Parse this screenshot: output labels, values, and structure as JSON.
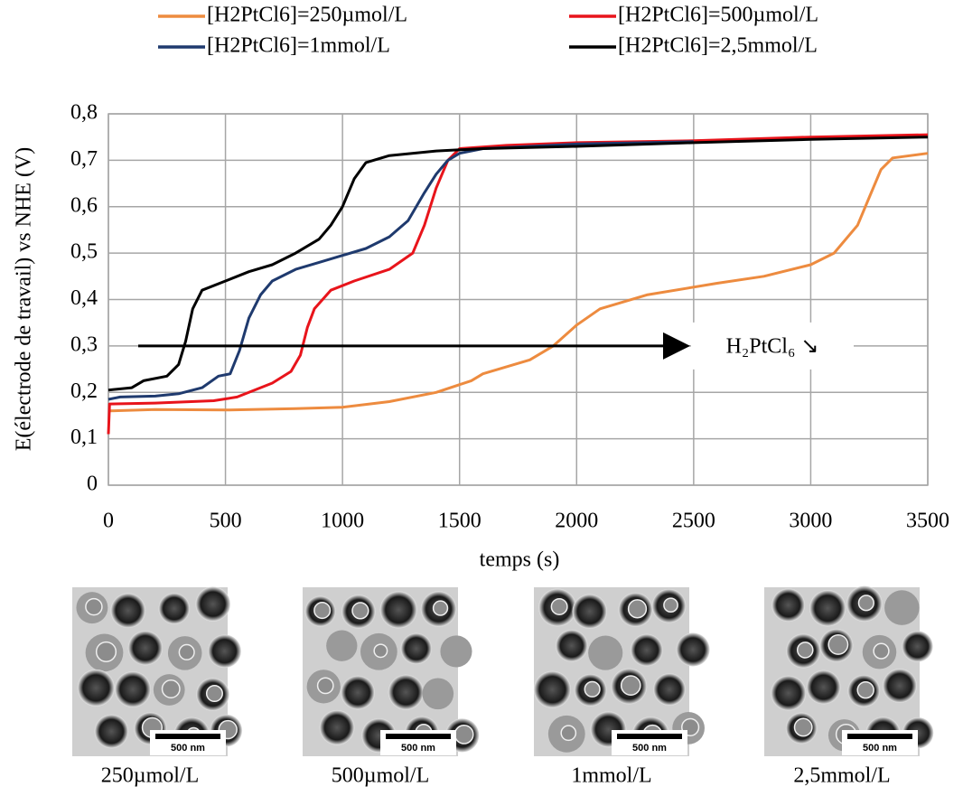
{
  "chart_data": {
    "type": "line",
    "xlabel": "temps (s)",
    "ylabel": "E(électrode de travail) vs NHE (V)",
    "xlim": [
      0,
      3500
    ],
    "xticks": [
      0,
      500,
      1000,
      1500,
      2000,
      2500,
      3000,
      3500
    ],
    "ylim": [
      0,
      0.8
    ],
    "yticks": [
      0,
      {
        "value": 0.1,
        "label": "0,1"
      },
      {
        "value": 0.2,
        "label": "0,2"
      },
      {
        "value": 0.3,
        "label": "0,3"
      },
      {
        "value": 0.4,
        "label": "0,4"
      },
      {
        "value": 0.5,
        "label": "0,5"
      },
      {
        "value": 0.6,
        "label": "0,6"
      },
      {
        "value": 0.7,
        "label": "0,7"
      },
      {
        "value": 0.8,
        "label": "0,8"
      }
    ],
    "grid": true,
    "annotation": "H₂PtCl₆ ↘",
    "series": [
      {
        "name": "[H2PtCl6]=250µmol/L",
        "color": "#ed8b3f",
        "x": [
          0,
          200,
          500,
          800,
          1000,
          1200,
          1400,
          1550,
          1600,
          1800,
          1900,
          2000,
          2100,
          2300,
          2600,
          2800,
          3000,
          3100,
          3200,
          3250,
          3300,
          3350,
          3500
        ],
        "values": [
          0.16,
          0.163,
          0.162,
          0.165,
          0.168,
          0.18,
          0.2,
          0.225,
          0.24,
          0.27,
          0.3,
          0.345,
          0.38,
          0.41,
          0.435,
          0.45,
          0.475,
          0.5,
          0.56,
          0.62,
          0.68,
          0.705,
          0.715
        ]
      },
      {
        "name": "[H2PtCl6]=500µmol/L",
        "color": "#e8141b",
        "x": [
          0,
          5,
          200,
          450,
          550,
          700,
          780,
          820,
          850,
          880,
          950,
          1050,
          1200,
          1300,
          1350,
          1400,
          1450,
          1500,
          1700,
          2000,
          2500,
          3000,
          3500
        ],
        "values": [
          0.11,
          0.175,
          0.177,
          0.182,
          0.19,
          0.22,
          0.245,
          0.28,
          0.34,
          0.38,
          0.42,
          0.44,
          0.465,
          0.5,
          0.56,
          0.64,
          0.7,
          0.725,
          0.732,
          0.738,
          0.742,
          0.75,
          0.755
        ]
      },
      {
        "name": "[H2PtCl6]=1mmol/L",
        "color": "#1f3a6e",
        "x": [
          0,
          50,
          200,
          300,
          400,
          470,
          520,
          560,
          600,
          650,
          700,
          800,
          900,
          1000,
          1100,
          1200,
          1280,
          1350,
          1400,
          1450,
          1500,
          1600,
          1800,
          2000,
          2500
        ],
        "values": [
          0.185,
          0.19,
          0.192,
          0.197,
          0.21,
          0.235,
          0.24,
          0.29,
          0.36,
          0.41,
          0.44,
          0.465,
          0.48,
          0.495,
          0.51,
          0.535,
          0.57,
          0.63,
          0.67,
          0.7,
          0.715,
          0.725,
          0.73,
          0.735,
          0.74
        ]
      },
      {
        "name": "[H2PtCl6]=2,5mmol/L",
        "color": "#000000",
        "x": [
          0,
          100,
          150,
          250,
          300,
          330,
          360,
          400,
          500,
          600,
          700,
          800,
          900,
          950,
          1000,
          1050,
          1100,
          1200,
          1400,
          1600,
          2000,
          2500,
          3000,
          3500
        ],
        "values": [
          0.205,
          0.21,
          0.225,
          0.235,
          0.26,
          0.31,
          0.38,
          0.42,
          0.44,
          0.46,
          0.475,
          0.5,
          0.53,
          0.56,
          0.6,
          0.66,
          0.695,
          0.71,
          0.72,
          0.725,
          0.73,
          0.738,
          0.745,
          0.75
        ]
      }
    ]
  },
  "micrographs": [
    {
      "caption": "250µmol/L",
      "scale_bar": "500 nm"
    },
    {
      "caption": "500µmol/L",
      "scale_bar": "500 nm"
    },
    {
      "caption": "1mmol/L",
      "scale_bar": "500 nm"
    },
    {
      "caption": "2,5mmol/L",
      "scale_bar": "500 nm"
    }
  ]
}
